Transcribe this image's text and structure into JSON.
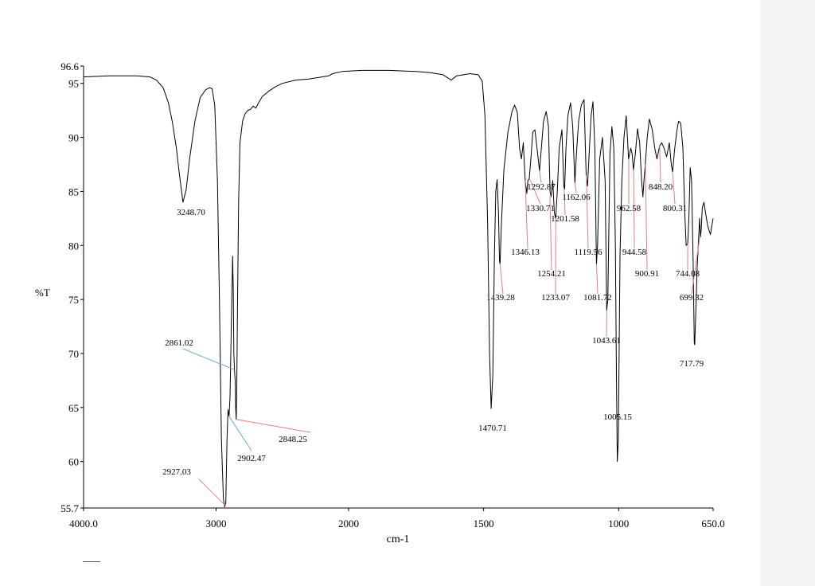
{
  "chart_data": {
    "type": "line",
    "title": "",
    "xlabel": "cm-1",
    "ylabel": "%T",
    "xlim": [
      4000.0,
      650.0
    ],
    "ylim": [
      55.7,
      96.6
    ],
    "x_ticks": [
      "4000.0",
      "3000",
      "2000",
      "1500",
      "1000",
      "650.0"
    ],
    "y_ticks": [
      "96.6",
      "95",
      "90",
      "85",
      "80",
      "75",
      "70",
      "65",
      "60",
      "55.7"
    ],
    "colors": {
      "trace": "#000000",
      "leader_red": "#e08080",
      "leader_blue": "#5fb0d8"
    },
    "series": [
      {
        "points": [
          [
            4000,
            95.6
          ],
          [
            3800,
            95.7
          ],
          [
            3600,
            95.7
          ],
          [
            3500,
            95.6
          ],
          [
            3450,
            95.3
          ],
          [
            3400,
            94.6
          ],
          [
            3360,
            93.2
          ],
          [
            3330,
            91.4
          ],
          [
            3300,
            89.0
          ],
          [
            3275,
            86.4
          ],
          [
            3250,
            84.0
          ],
          [
            3225,
            85.2
          ],
          [
            3200,
            88.0
          ],
          [
            3160,
            91.5
          ],
          [
            3120,
            93.7
          ],
          [
            3080,
            94.4
          ],
          [
            3050,
            94.6
          ],
          [
            3030,
            94.5
          ],
          [
            3010,
            93.0
          ],
          [
            2990,
            86.0
          ],
          [
            2975,
            75.0
          ],
          [
            2960,
            62.0
          ],
          [
            2945,
            56.5
          ],
          [
            2935,
            55.8
          ],
          [
            2927,
            56.2
          ],
          [
            2918,
            62.0
          ],
          [
            2910,
            64.8
          ],
          [
            2902,
            64.2
          ],
          [
            2895,
            66.0
          ],
          [
            2885,
            72.5
          ],
          [
            2875,
            79.0
          ],
          [
            2870,
            76.0
          ],
          [
            2866,
            70.0
          ],
          [
            2861,
            68.5
          ],
          [
            2856,
            67.5
          ],
          [
            2852,
            65.0
          ],
          [
            2848,
            63.9
          ],
          [
            2844,
            67.0
          ],
          [
            2838,
            75.0
          ],
          [
            2830,
            84.0
          ],
          [
            2820,
            89.5
          ],
          [
            2800,
            91.5
          ],
          [
            2780,
            92.2
          ],
          [
            2760,
            92.5
          ],
          [
            2740,
            92.6
          ],
          [
            2720,
            92.9
          ],
          [
            2700,
            92.7
          ],
          [
            2680,
            93.2
          ],
          [
            2650,
            93.8
          ],
          [
            2600,
            94.3
          ],
          [
            2550,
            94.7
          ],
          [
            2500,
            95.0
          ],
          [
            2400,
            95.3
          ],
          [
            2300,
            95.4
          ],
          [
            2200,
            95.6
          ],
          [
            2150,
            95.7
          ],
          [
            2120,
            95.9
          ],
          [
            2050,
            96.1
          ],
          [
            1950,
            96.2
          ],
          [
            1850,
            96.2
          ],
          [
            1750,
            96.1
          ],
          [
            1700,
            96.0
          ],
          [
            1650,
            95.8
          ],
          [
            1620,
            95.3
          ],
          [
            1600,
            95.7
          ],
          [
            1550,
            95.9
          ],
          [
            1520,
            95.8
          ],
          [
            1505,
            95.2
          ],
          [
            1495,
            92.0
          ],
          [
            1485,
            82.0
          ],
          [
            1478,
            70.0
          ],
          [
            1472,
            64.9
          ],
          [
            1466,
            68.0
          ],
          [
            1460,
            79.0
          ],
          [
            1455,
            85.0
          ],
          [
            1450,
            86.1
          ],
          [
            1445,
            83.0
          ],
          [
            1441,
            78.5
          ],
          [
            1439,
            78.3
          ],
          [
            1434,
            82.0
          ],
          [
            1425,
            87.0
          ],
          [
            1410,
            90.5
          ],
          [
            1395,
            92.4
          ],
          [
            1385,
            93.0
          ],
          [
            1375,
            92.3
          ],
          [
            1367,
            89.0
          ],
          [
            1360,
            88.0
          ],
          [
            1353,
            89.5
          ],
          [
            1346,
            86.0
          ],
          [
            1340,
            84.8
          ],
          [
            1336,
            86.0
          ],
          [
            1331,
            86.2
          ],
          [
            1325,
            88.0
          ],
          [
            1318,
            90.5
          ],
          [
            1310,
            90.7
          ],
          [
            1300,
            88.5
          ],
          [
            1293,
            86.9
          ],
          [
            1286,
            89.0
          ],
          [
            1278,
            91.5
          ],
          [
            1268,
            92.4
          ],
          [
            1260,
            91.0
          ],
          [
            1254,
            85.0
          ],
          [
            1250,
            84.5
          ],
          [
            1244,
            86.0
          ],
          [
            1238,
            83.0
          ],
          [
            1233,
            82.5
          ],
          [
            1227,
            85.0
          ],
          [
            1220,
            89.0
          ],
          [
            1210,
            90.7
          ],
          [
            1203,
            85.5
          ],
          [
            1200,
            85.2
          ],
          [
            1195,
            89.0
          ],
          [
            1188,
            92.0
          ],
          [
            1178,
            93.2
          ],
          [
            1170,
            91.0
          ],
          [
            1162,
            85.8
          ],
          [
            1156,
            88.5
          ],
          [
            1148,
            91.5
          ],
          [
            1138,
            93.0
          ],
          [
            1128,
            93.5
          ],
          [
            1120,
            86.5
          ],
          [
            1115,
            85.5
          ],
          [
            1110,
            88.0
          ],
          [
            1102,
            92.0
          ],
          [
            1095,
            93.3
          ],
          [
            1088,
            89.0
          ],
          [
            1082,
            78.3
          ],
          [
            1078,
            80.0
          ],
          [
            1070,
            88.0
          ],
          [
            1060,
            90.0
          ],
          [
            1050,
            86.0
          ],
          [
            1044,
            74.0
          ],
          [
            1040,
            75.0
          ],
          [
            1032,
            88.5
          ],
          [
            1025,
            91.0
          ],
          [
            1018,
            89.0
          ],
          [
            1012,
            80.0
          ],
          [
            1008,
            68.0
          ],
          [
            1005,
            60.0
          ],
          [
            1001,
            62.0
          ],
          [
            995,
            79.0
          ],
          [
            988,
            86.0
          ],
          [
            980,
            90.0
          ],
          [
            972,
            92.0
          ],
          [
            963,
            88.0
          ],
          [
            955,
            89.0
          ],
          [
            950,
            88.5
          ],
          [
            945,
            87.0
          ],
          [
            938,
            88.5
          ],
          [
            930,
            90.8
          ],
          [
            922,
            89.5
          ],
          [
            915,
            86.0
          ],
          [
            910,
            84.5
          ],
          [
            906,
            86.0
          ],
          [
            901,
            87.5
          ],
          [
            894,
            90.0
          ],
          [
            886,
            91.7
          ],
          [
            876,
            90.8
          ],
          [
            866,
            89.0
          ],
          [
            858,
            88.0
          ],
          [
            848,
            89.2
          ],
          [
            840,
            89.5
          ],
          [
            832,
            89.0
          ],
          [
            822,
            88.2
          ],
          [
            812,
            89.5
          ],
          [
            805,
            87.5
          ],
          [
            800,
            86.8
          ],
          [
            793,
            88.8
          ],
          [
            785,
            90.5
          ],
          [
            778,
            91.5
          ],
          [
            770,
            91.3
          ],
          [
            762,
            89.0
          ],
          [
            755,
            83.0
          ],
          [
            750,
            80.0
          ],
          [
            744,
            80.2
          ],
          [
            740,
            82.5
          ],
          [
            735,
            87.2
          ],
          [
            730,
            86.0
          ],
          [
            724,
            78.5
          ],
          [
            720,
            71.0
          ],
          [
            718,
            70.8
          ],
          [
            714,
            74.0
          ],
          [
            709,
            78.0
          ],
          [
            704,
            80.5
          ],
          [
            700,
            82.5
          ],
          [
            697,
            80.8
          ],
          [
            694,
            81.5
          ],
          [
            690,
            83.5
          ],
          [
            684,
            84.0
          ],
          [
            678,
            83.0
          ],
          [
            670,
            81.8
          ],
          [
            660,
            81.0
          ],
          [
            655,
            81.8
          ],
          [
            650,
            82.5
          ]
        ]
      }
    ],
    "peak_labels": [
      {
        "label": "3248.70",
        "x": 3248.7,
        "y": 84.0
      },
      {
        "label": "2861.02",
        "x": 2861.02,
        "y": 68.5
      },
      {
        "label": "2848.25",
        "x": 2848.25,
        "y": 63.9
      },
      {
        "label": "2902.47",
        "x": 2902.47,
        "y": 64.2
      },
      {
        "label": "2927.03",
        "x": 2927.03,
        "y": 55.9
      },
      {
        "label": "1470.71",
        "x": 1470.71,
        "y": 64.9
      },
      {
        "label": "1439.28",
        "x": 1439.28,
        "y": 78.3
      },
      {
        "label": "1346.13",
        "x": 1346.13,
        "y": 86.0
      },
      {
        "label": "1330.71",
        "x": 1330.71,
        "y": 86.2
      },
      {
        "label": "1292.87",
        "x": 1292.87,
        "y": 86.9
      },
      {
        "label": "1254.21",
        "x": 1254.21,
        "y": 84.5
      },
      {
        "label": "1233.07",
        "x": 1233.07,
        "y": 82.5
      },
      {
        "label": "1201.58",
        "x": 1201.58,
        "y": 85.2
      },
      {
        "label": "1162.06",
        "x": 1162.06,
        "y": 85.8
      },
      {
        "label": "1119.56",
        "x": 1119.56,
        "y": 86.5
      },
      {
        "label": "1081.72",
        "x": 1081.72,
        "y": 78.3
      },
      {
        "label": "1043.61",
        "x": 1043.61,
        "y": 74.0
      },
      {
        "label": "1005.15",
        "x": 1005.15,
        "y": 60.0
      },
      {
        "label": "962.58",
        "x": 962.58,
        "y": 88.0
      },
      {
        "label": "944.58",
        "x": 944.58,
        "y": 87.0
      },
      {
        "label": "900.91",
        "x": 900.91,
        "y": 87.5
      },
      {
        "label": "848.20",
        "x": 848.2,
        "y": 89.2
      },
      {
        "label": "800.31",
        "x": 800.31,
        "y": 86.8
      },
      {
        "label": "744.08",
        "x": 744.08,
        "y": 80.2
      },
      {
        "label": "717.79",
        "x": 717.79,
        "y": 70.8
      },
      {
        "label": "699.32",
        "x": 699.32,
        "y": 80.8
      }
    ]
  }
}
